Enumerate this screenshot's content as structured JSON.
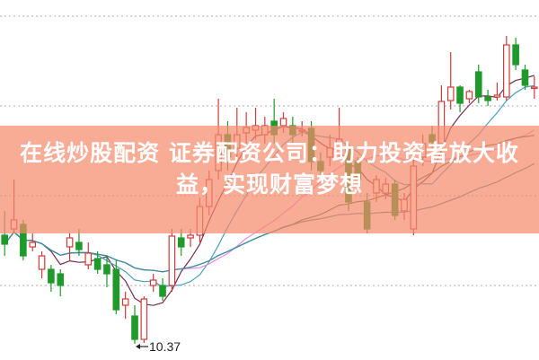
{
  "banner": {
    "line1": "在线炒股配资 证券配资公司：助力投资者放大收",
    "line2": "益，实现财富梦想",
    "color": "#f58a6c"
  },
  "chart_data": {
    "type": "candlestick",
    "fields": [
      "open",
      "close",
      "high",
      "low"
    ],
    "candles": [
      [
        11.58,
        11.48,
        11.85,
        11.35
      ],
      [
        11.65,
        11.75,
        12.2,
        11.6
      ],
      [
        11.7,
        11.35,
        11.75,
        11.3
      ],
      [
        11.45,
        11.5,
        11.6,
        11.4
      ],
      [
        11.2,
        11.35,
        11.4,
        11.1
      ],
      [
        11.2,
        11.05,
        11.25,
        10.95
      ],
      [
        11.15,
        11.02,
        11.2,
        10.9
      ],
      [
        11.45,
        11.55,
        11.6,
        11.3
      ],
      [
        11.5,
        11.42,
        11.65,
        11.35
      ],
      [
        11.25,
        11.38,
        11.5,
        11.2
      ],
      [
        11.32,
        11.2,
        11.4,
        11.15
      ],
      [
        11.25,
        11.15,
        11.35,
        11.0
      ],
      [
        11.2,
        10.75,
        11.3,
        10.7
      ],
      [
        10.8,
        10.87,
        10.95,
        10.65
      ],
      [
        10.68,
        10.42,
        10.8,
        10.37
      ],
      [
        10.42,
        10.87,
        10.9,
        10.38
      ],
      [
        11.02,
        11.08,
        11.15,
        10.95
      ],
      [
        11.02,
        10.9,
        11.1,
        10.85
      ],
      [
        11.02,
        11.57,
        11.65,
        10.95
      ],
      [
        11.55,
        11.45,
        11.65,
        11.35
      ],
      [
        11.55,
        11.58,
        11.65,
        11.45
      ],
      [
        11.58,
        11.9,
        12.0,
        11.5
      ],
      [
        11.9,
        12.2,
        12.3,
        11.8
      ],
      [
        12.3,
        12.7,
        13.1,
        12.2
      ],
      [
        12.7,
        12.45,
        12.85,
        12.3
      ],
      [
        12.55,
        12.7,
        13.0,
        12.45
      ],
      [
        12.72,
        12.78,
        12.95,
        12.6
      ],
      [
        12.75,
        12.8,
        13.0,
        12.65
      ],
      [
        12.7,
        12.8,
        12.9,
        12.6
      ],
      [
        12.85,
        12.7,
        13.1,
        12.6
      ],
      [
        12.8,
        12.88,
        12.95,
        12.72
      ],
      [
        12.8,
        12.7,
        12.9,
        12.6
      ],
      [
        12.75,
        12.75,
        12.85,
        12.68
      ],
      [
        12.77,
        12.4,
        12.85,
        12.3
      ],
      [
        12.4,
        12.3,
        12.5,
        12.2
      ],
      [
        12.45,
        12.55,
        12.7,
        12.35
      ],
      [
        12.5,
        12.65,
        13.0,
        12.42
      ],
      [
        12.55,
        11.95,
        12.6,
        11.85
      ],
      [
        12.4,
        12.2,
        12.45,
        12.1
      ],
      [
        11.95,
        11.65,
        12.05,
        11.6
      ],
      [
        12.05,
        12.2,
        12.25,
        11.95
      ],
      [
        12.05,
        12.15,
        12.22,
        11.98
      ],
      [
        12.15,
        11.8,
        12.2,
        11.75
      ],
      [
        11.85,
        11.98,
        12.05,
        11.75
      ],
      [
        11.65,
        12.35,
        12.5,
        11.58
      ],
      [
        12.45,
        12.6,
        12.7,
        12.35
      ],
      [
        12.7,
        12.62,
        12.8,
        12.55
      ],
      [
        12.6,
        13.07,
        13.25,
        12.55
      ],
      [
        13.08,
        13.23,
        13.62,
        12.98
      ],
      [
        13.23,
        13.05,
        13.25,
        12.95
      ],
      [
        13.1,
        13.18,
        13.2,
        13.05
      ],
      [
        13.4,
        13.12,
        13.48,
        13.05
      ],
      [
        13.12,
        13.08,
        13.2,
        13.02
      ],
      [
        13.12,
        13.14,
        13.28,
        13.08
      ],
      [
        13.12,
        13.7,
        13.8,
        13.08
      ],
      [
        13.7,
        13.48,
        13.78,
        13.42
      ],
      [
        13.42,
        13.25,
        13.48,
        13.2
      ],
      [
        13.23,
        13.23,
        13.35,
        13.1
      ]
    ],
    "low_annotation": {
      "label": "10.37",
      "value": 10.37
    },
    "moving_average_colors": [
      "#7a2a4a",
      "#4aa0c0",
      "#e98be8",
      "#3a7a3a",
      "#3a8ea8"
    ],
    "up_color": "#d23a3a",
    "down_color": "#1f9a2a",
    "grid": true
  }
}
